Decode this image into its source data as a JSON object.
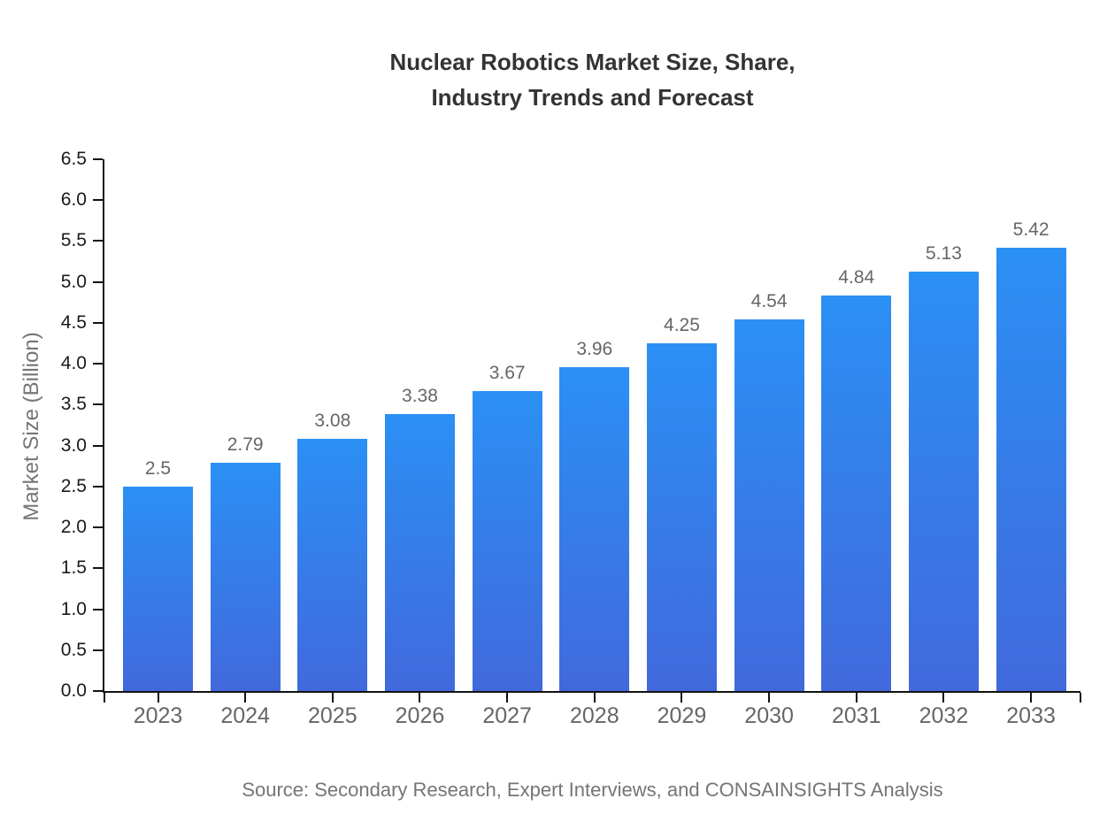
{
  "chart_data": {
    "type": "bar",
    "title_lines": [
      "Nuclear Robotics Market Size, Share,",
      "Industry Trends and Forecast"
    ],
    "title": "Nuclear Robotics Market Size, Share, Industry Trends and Forecast",
    "categories": [
      "2023",
      "2024",
      "2025",
      "2026",
      "2027",
      "2028",
      "2029",
      "2030",
      "2031",
      "2032",
      "2033"
    ],
    "values": [
      2.5,
      2.79,
      3.08,
      3.38,
      3.67,
      3.96,
      4.25,
      4.54,
      4.84,
      5.13,
      5.42
    ],
    "value_labels": [
      "2.5",
      "2.79",
      "3.08",
      "3.38",
      "3.67",
      "3.96",
      "4.25",
      "4.54",
      "4.84",
      "5.13",
      "5.42"
    ],
    "xlabel": "",
    "ylabel": "Market Size (Billion)",
    "ylim": [
      0,
      6.5
    ],
    "y_tick_step": 0.5,
    "y_tick_labels": [
      "0.0",
      "0.5",
      "1.0",
      "1.5",
      "2.0",
      "2.5",
      "3.0",
      "3.5",
      "4.0",
      "4.5",
      "5.0",
      "5.5",
      "6.0",
      "6.5"
    ],
    "grid": false,
    "legend": null,
    "source_note": "Source: Secondary Research, Expert Interviews, and CONSAINSIGHTS Analysis",
    "colors": {
      "bar_gradient_top": "#2B90F4",
      "bar_gradient_bottom": "#4169DC",
      "axis": "#111111",
      "y_tick_label": "#1a1a1a",
      "x_tick_label": "#666666",
      "value_label": "#666666",
      "title": "#333333",
      "axis_title": "#757575",
      "source": "#757575",
      "background": "#ffffff"
    }
  }
}
